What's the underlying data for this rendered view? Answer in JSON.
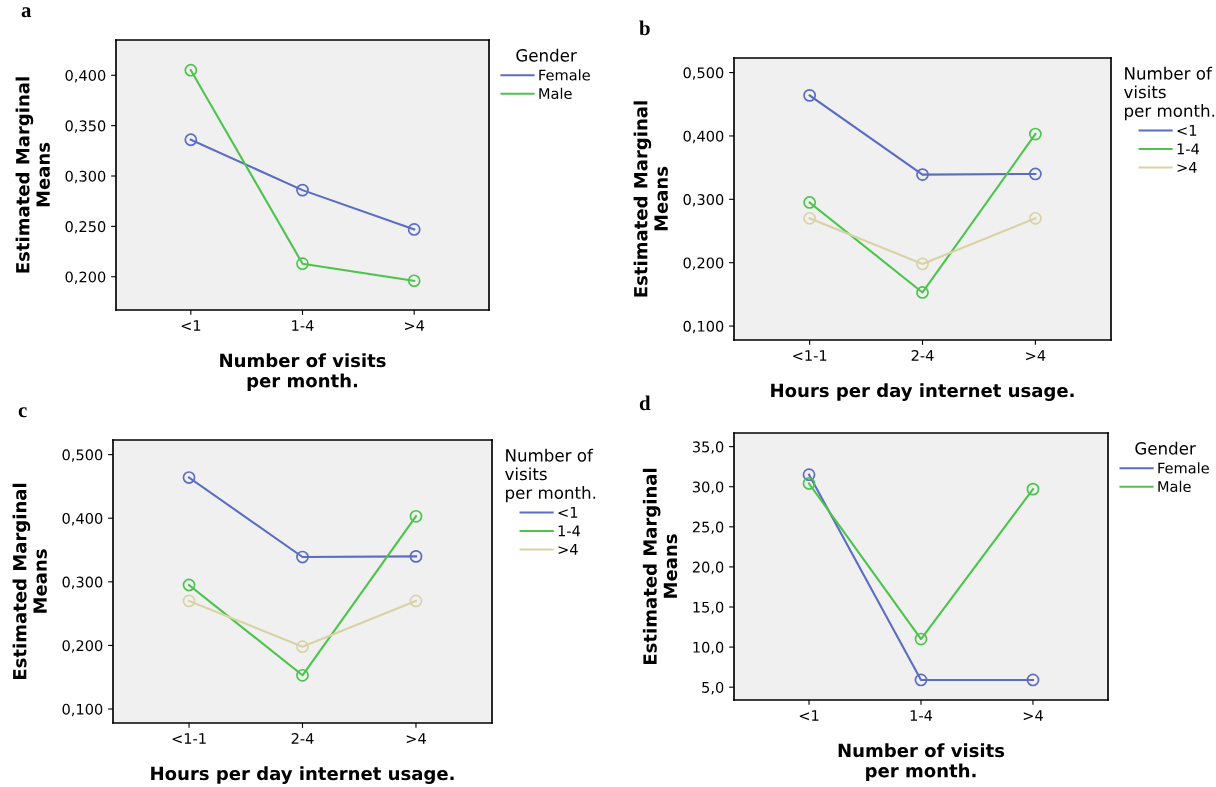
{
  "chart_data": [
    {
      "type": "line",
      "title": "a",
      "xlabel": "Number of visits\nper month.",
      "ylabel": "Estimated Marginal\nMeans",
      "legend_title": "Gender",
      "legend": "right",
      "marker": "circle",
      "grid": false,
      "categories": [
        "<1",
        "1-4",
        ">4"
      ],
      "ylim": [
        0.167,
        0.435
      ],
      "yticks": [
        {
          "value": 0.2,
          "label": "0,200"
        },
        {
          "value": 0.25,
          "label": "0,250"
        },
        {
          "value": 0.3,
          "label": "0,300"
        },
        {
          "value": 0.35,
          "label": "0,350"
        },
        {
          "value": 0.4,
          "label": "0,400"
        }
      ],
      "series": [
        {
          "name": "Female",
          "color": "#5a6cc4",
          "values": [
            0.336,
            0.286,
            0.247
          ]
        },
        {
          "name": "Male",
          "color": "#4cc44c",
          "values": [
            0.405,
            0.213,
            0.196
          ]
        }
      ]
    },
    {
      "type": "line",
      "title": "b",
      "xlabel": "Hours per day internet usage.",
      "ylabel": "Estimated Marginal\nMeans",
      "legend_title": "Number of\nvisits\nper month.",
      "legend": "right",
      "marker": "circle",
      "grid": false,
      "categories": [
        "<1-1",
        "2-4",
        ">4"
      ],
      "ylim": [
        0.078,
        0.523
      ],
      "yticks": [
        {
          "value": 0.1,
          "label": "0,100"
        },
        {
          "value": 0.2,
          "label": "0,200"
        },
        {
          "value": 0.3,
          "label": "0,300"
        },
        {
          "value": 0.4,
          "label": "0,400"
        },
        {
          "value": 0.5,
          "label": "0,500"
        }
      ],
      "series": [
        {
          "name": "<1",
          "color": "#5a6cc4",
          "values": [
            0.464,
            0.339,
            0.34
          ]
        },
        {
          "name": "1-4",
          "color": "#4cc44c",
          "values": [
            0.295,
            0.153,
            0.403
          ]
        },
        {
          "name": ">4",
          "color": "#d8d2a4",
          "values": [
            0.27,
            0.198,
            0.27
          ]
        }
      ]
    },
    {
      "type": "line",
      "title": "c",
      "xlabel": "Hours per day internet usage.",
      "ylabel": "Estimated Marginal\nMeans",
      "legend_title": "Number of\nvisits\nper month.",
      "legend": "right",
      "marker": "circle",
      "grid": false,
      "categories": [
        "<1-1",
        "2-4",
        ">4"
      ],
      "ylim": [
        0.078,
        0.523
      ],
      "yticks": [
        {
          "value": 0.1,
          "label": "0,100"
        },
        {
          "value": 0.2,
          "label": "0,200"
        },
        {
          "value": 0.3,
          "label": "0,300"
        },
        {
          "value": 0.4,
          "label": "0,400"
        },
        {
          "value": 0.5,
          "label": "0,500"
        }
      ],
      "series": [
        {
          "name": "<1",
          "color": "#5a6cc4",
          "values": [
            0.464,
            0.339,
            0.34
          ]
        },
        {
          "name": "1-4",
          "color": "#4cc44c",
          "values": [
            0.295,
            0.153,
            0.403
          ]
        },
        {
          "name": ">4",
          "color": "#d8d2a4",
          "values": [
            0.27,
            0.198,
            0.27
          ]
        }
      ]
    },
    {
      "type": "line",
      "title": "d",
      "xlabel": "Number of visits\nper month.",
      "ylabel": "Estimated Marginal\nMeans",
      "legend_title": "Gender",
      "legend": "right",
      "marker": "circle",
      "grid": false,
      "categories": [
        "<1",
        "1-4",
        ">4"
      ],
      "ylim": [
        3.4,
        36.7
      ],
      "yticks": [
        {
          "value": 5,
          "label": "5,0"
        },
        {
          "value": 10,
          "label": "10,0"
        },
        {
          "value": 15,
          "label": "15,0"
        },
        {
          "value": 20,
          "label": "20,0"
        },
        {
          "value": 25,
          "label": "25,0"
        },
        {
          "value": 30,
          "label": "30,0"
        },
        {
          "value": 35,
          "label": "35,0"
        }
      ],
      "series": [
        {
          "name": "Female",
          "color": "#5a6cc4",
          "values": [
            31.5,
            5.9,
            5.9
          ]
        },
        {
          "name": "Male",
          "color": "#4cc44c",
          "values": [
            30.4,
            11.0,
            29.7
          ]
        }
      ]
    }
  ]
}
